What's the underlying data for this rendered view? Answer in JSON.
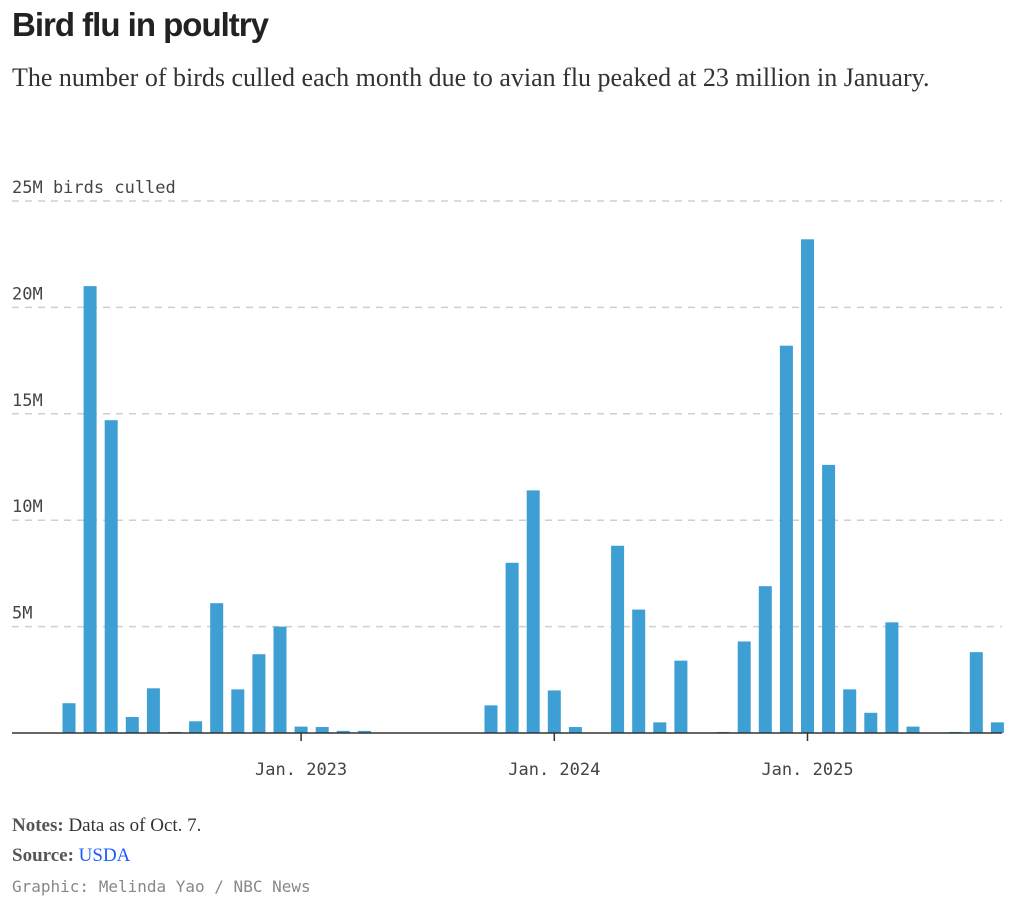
{
  "title": "Bird flu in poultry",
  "subtitle": "The number of birds culled each month due to avian flu peaked at 23 million in January.",
  "chart_data": {
    "type": "bar",
    "ylabel": "birds culled",
    "ylim": [
      0,
      25
    ],
    "yunit": "M",
    "yticks": [
      {
        "value": 5,
        "label": "5M"
      },
      {
        "value": 10,
        "label": "10M"
      },
      {
        "value": 15,
        "label": "15M"
      },
      {
        "value": 20,
        "label": "20M"
      },
      {
        "value": 25,
        "label": "25M birds culled"
      }
    ],
    "xticks": [
      {
        "index": 11,
        "label": "Jan. 2023"
      },
      {
        "index": 23,
        "label": "Jan. 2024"
      },
      {
        "index": 35,
        "label": "Jan. 2025"
      }
    ],
    "grid": true,
    "color": "#3d9fd3",
    "categories": [
      "2022-02",
      "2022-03",
      "2022-04",
      "2022-05",
      "2022-06",
      "2022-07",
      "2022-08",
      "2022-09",
      "2022-10",
      "2022-11",
      "2022-12",
      "2023-01",
      "2023-02",
      "2023-03",
      "2023-04",
      "2023-05",
      "2023-06",
      "2023-07",
      "2023-08",
      "2023-09",
      "2023-10",
      "2023-11",
      "2023-12",
      "2024-01",
      "2024-02",
      "2024-03",
      "2024-04",
      "2024-05",
      "2024-06",
      "2024-07",
      "2024-08",
      "2024-09",
      "2024-10",
      "2024-11",
      "2024-12",
      "2025-01",
      "2025-02",
      "2025-03",
      "2025-04",
      "2025-05",
      "2025-06",
      "2025-07",
      "2025-08",
      "2025-09",
      "2025-10"
    ],
    "values": [
      1.4,
      21.0,
      14.7,
      0.75,
      2.1,
      0.05,
      0.55,
      6.1,
      2.05,
      3.7,
      5.0,
      0.3,
      0.28,
      0.1,
      0.1,
      0,
      0,
      0,
      0,
      0,
      1.3,
      8.0,
      11.4,
      2.0,
      0.28,
      0,
      8.8,
      5.8,
      0.5,
      3.4,
      0,
      0.05,
      4.3,
      6.9,
      18.2,
      23.2,
      12.6,
      2.05,
      0.95,
      5.2,
      0.3,
      0,
      0.05,
      3.8,
      0.5
    ]
  },
  "notes_label": "Notes:",
  "notes_text": " Data as of Oct. 7.",
  "source_label": "Source:",
  "source_link": "USDA",
  "credit": "Graphic: Melinda Yao / NBC News"
}
